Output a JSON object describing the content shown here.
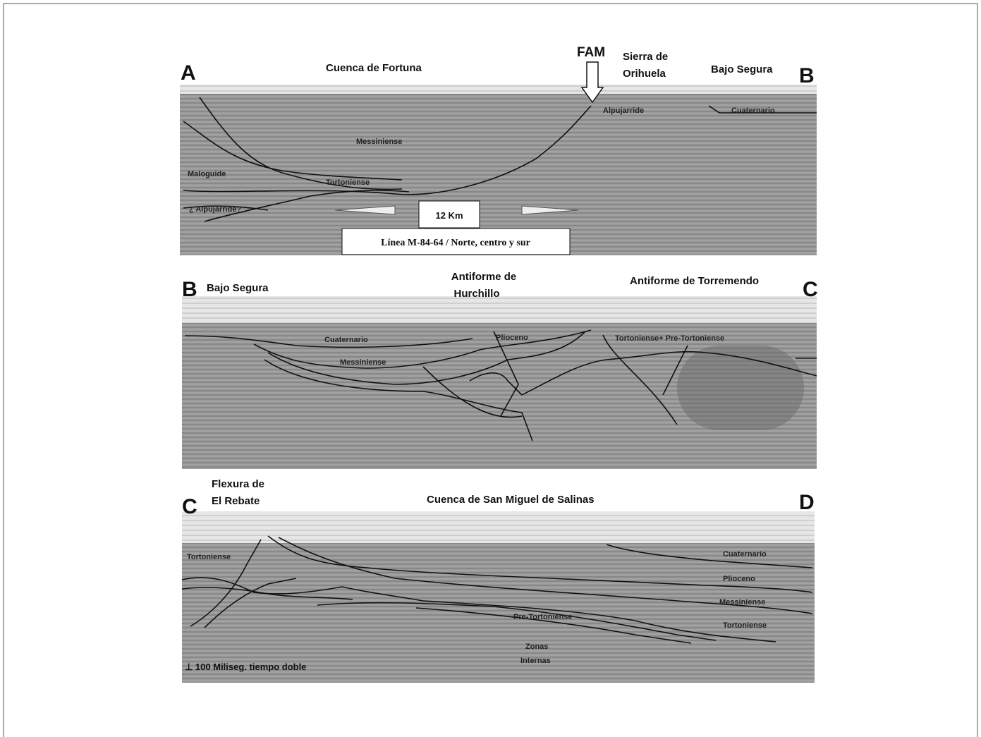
{
  "panels": [
    {
      "labels": [
        "A",
        "B",
        "Cuenca de Fortuna",
        "FAM",
        "Sierra de",
        "Orihuela",
        "Bajo Segura",
        "Alpujarride",
        "Cuaternario",
        "Messiniense",
        "Maloguide",
        "Tortoniense",
        "¿ Alpujarride?",
        "12 Km",
        "Línea M-84-64 / Norte, centro y sur"
      ]
    },
    {
      "labels": [
        "B",
        "C",
        "Bajo Segura",
        "Antiforme de",
        "Hurchillo",
        "Antiforme de Torremendo",
        "Cuaternario",
        "Plioceno",
        "Messiniense",
        "Tortoniense+ Pre-Tortoniense"
      ]
    },
    {
      "labels": [
        "C",
        "D",
        "Flexura de",
        "El Rebate",
        "Cuenca de San Miguel de Salinas",
        "Tortoniense",
        "Cuaternario",
        "Plioceno",
        "Messiniense",
        "Tortoniense",
        "Pre-Tortoniense",
        "Zonas",
        "Internas",
        "⊥ 100 Miliseg. tiempo doble"
      ]
    }
  ]
}
